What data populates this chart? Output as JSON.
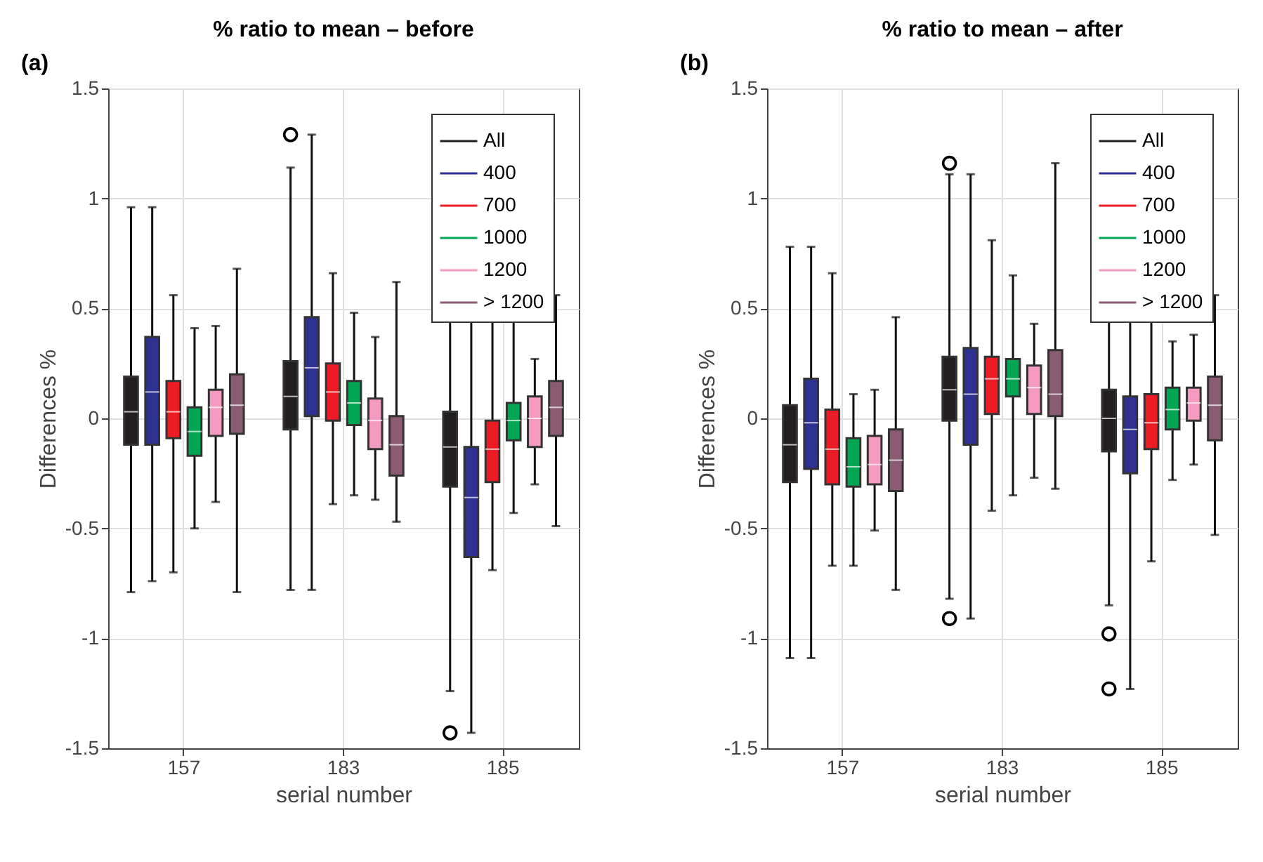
{
  "chart_data": [
    {
      "type": "box",
      "title": "% ratio to mean – before",
      "xlabel": "serial number",
      "ylabel": "Differences %",
      "annotations": [
        "(a)"
      ],
      "categories": [
        "157",
        "183",
        "185"
      ],
      "ylim": [
        -1.5,
        1.5
      ],
      "yticks": [
        -1.5,
        -1,
        -0.5,
        0,
        0.5,
        1,
        1.5
      ],
      "grid": true,
      "legend": "top right",
      "series": [
        {
          "name": "All",
          "color": "#231f20",
          "boxes": [
            {
              "low": -0.79,
              "q1": -0.12,
              "median": 0.03,
              "q3": 0.19,
              "high": 0.96
            },
            {
              "low": -0.78,
              "q1": -0.05,
              "median": 0.1,
              "q3": 0.26,
              "high": 1.14,
              "outliers": [
                1.29
              ]
            },
            {
              "low": -1.24,
              "q1": -0.31,
              "median": -0.13,
              "q3": 0.03,
              "high": 0.9,
              "outliers": [
                -1.43
              ]
            }
          ]
        },
        {
          "name": "400",
          "color": "#2e3192",
          "boxes": [
            {
              "low": -0.74,
              "q1": -0.12,
              "median": 0.12,
              "q3": 0.37,
              "high": 0.96
            },
            {
              "low": -0.78,
              "q1": 0.01,
              "median": 0.23,
              "q3": 0.46,
              "high": 1.29
            },
            {
              "low": -1.43,
              "q1": -0.63,
              "median": -0.36,
              "q3": -0.13,
              "high": 0.9
            }
          ]
        },
        {
          "name": "700",
          "color": "#ed1c24",
          "boxes": [
            {
              "low": -0.7,
              "q1": -0.09,
              "median": 0.03,
              "q3": 0.17,
              "high": 0.56
            },
            {
              "low": -0.39,
              "q1": -0.01,
              "median": 0.12,
              "q3": 0.25,
              "high": 0.66
            },
            {
              "low": -0.69,
              "q1": -0.29,
              "median": -0.14,
              "q3": -0.01,
              "high": 0.8
            }
          ]
        },
        {
          "name": "1000",
          "color": "#00a651",
          "boxes": [
            {
              "low": -0.5,
              "q1": -0.17,
              "median": -0.06,
              "q3": 0.05,
              "high": 0.41
            },
            {
              "low": -0.35,
              "q1": -0.03,
              "median": 0.07,
              "q3": 0.17,
              "high": 0.48
            },
            {
              "low": -0.43,
              "q1": -0.1,
              "median": -0.01,
              "q3": 0.07,
              "high": 0.44
            }
          ]
        },
        {
          "name": "1200",
          "color": "#f49ac1",
          "boxes": [
            {
              "low": -0.38,
              "q1": -0.08,
              "median": 0.05,
              "q3": 0.13,
              "high": 0.42
            },
            {
              "low": -0.37,
              "q1": -0.14,
              "median": -0.01,
              "q3": 0.09,
              "high": 0.37
            },
            {
              "low": -0.3,
              "q1": -0.13,
              "median": 0,
              "q3": 0.1,
              "high": 0.27
            }
          ]
        },
        {
          "name": "> 1200",
          "color": "#8b5a73",
          "boxes": [
            {
              "low": -0.79,
              "q1": -0.07,
              "median": 0.06,
              "q3": 0.2,
              "high": 0.68
            },
            {
              "low": -0.47,
              "q1": -0.26,
              "median": -0.12,
              "q3": 0.01,
              "high": 0.62
            },
            {
              "low": -0.49,
              "q1": -0.08,
              "median": 0.05,
              "q3": 0.17,
              "high": 0.56
            }
          ]
        }
      ]
    },
    {
      "type": "box",
      "title": "% ratio to mean – after",
      "xlabel": "serial number",
      "ylabel": "Differences %",
      "annotations": [
        "(b)"
      ],
      "categories": [
        "157",
        "183",
        "185"
      ],
      "ylim": [
        -1.5,
        1.5
      ],
      "yticks": [
        -1.5,
        -1,
        -0.5,
        0,
        0.5,
        1,
        1.5
      ],
      "grid": true,
      "legend": "top right",
      "series": [
        {
          "name": "All",
          "color": "#231f20",
          "boxes": [
            {
              "low": -1.09,
              "q1": -0.29,
              "median": -0.12,
              "q3": 0.06,
              "high": 0.78
            },
            {
              "low": -0.82,
              "q1": -0.01,
              "median": 0.13,
              "q3": 0.28,
              "high": 1.11,
              "outliers": [
                1.16,
                -0.91
              ]
            },
            {
              "low": -0.85,
              "q1": -0.15,
              "median": 0,
              "q3": 0.13,
              "high": 0.9,
              "outliers": [
                -0.98,
                -1.23
              ]
            }
          ]
        },
        {
          "name": "400",
          "color": "#2e3192",
          "boxes": [
            {
              "low": -1.09,
              "q1": -0.23,
              "median": -0.02,
              "q3": 0.18,
              "high": 0.78
            },
            {
              "low": -0.91,
              "q1": -0.12,
              "median": 0.11,
              "q3": 0.32,
              "high": 1.11
            },
            {
              "low": -1.23,
              "q1": -0.25,
              "median": -0.05,
              "q3": 0.1,
              "high": 0.9
            }
          ]
        },
        {
          "name": "700",
          "color": "#ed1c24",
          "boxes": [
            {
              "low": -0.67,
              "q1": -0.3,
              "median": -0.14,
              "q3": 0.04,
              "high": 0.66
            },
            {
              "low": -0.42,
              "q1": 0.02,
              "median": 0.18,
              "q3": 0.28,
              "high": 0.81
            },
            {
              "low": -0.65,
              "q1": -0.14,
              "median": -0.02,
              "q3": 0.11,
              "high": 0.56
            }
          ]
        },
        {
          "name": "1000",
          "color": "#00a651",
          "boxes": [
            {
              "low": -0.67,
              "q1": -0.31,
              "median": -0.22,
              "q3": -0.09,
              "high": 0.11
            },
            {
              "low": -0.35,
              "q1": 0.1,
              "median": 0.18,
              "q3": 0.27,
              "high": 0.65
            },
            {
              "low": -0.28,
              "q1": -0.05,
              "median": 0.04,
              "q3": 0.14,
              "high": 0.35
            }
          ]
        },
        {
          "name": "1200",
          "color": "#f49ac1",
          "boxes": [
            {
              "low": -0.51,
              "q1": -0.3,
              "median": -0.21,
              "q3": -0.08,
              "high": 0.13
            },
            {
              "low": -0.27,
              "q1": 0.02,
              "median": 0.14,
              "q3": 0.24,
              "high": 0.43
            },
            {
              "low": -0.21,
              "q1": -0.01,
              "median": 0.07,
              "q3": 0.14,
              "high": 0.38
            }
          ]
        },
        {
          "name": "> 1200",
          "color": "#8b5a73",
          "boxes": [
            {
              "low": -0.78,
              "q1": -0.33,
              "median": -0.19,
              "q3": -0.05,
              "high": 0.46
            },
            {
              "low": -0.32,
              "q1": 0.01,
              "median": 0.11,
              "q3": 0.31,
              "high": 1.16
            },
            {
              "low": -0.53,
              "q1": -0.1,
              "median": 0.06,
              "q3": 0.19,
              "high": 0.56
            }
          ]
        }
      ]
    }
  ]
}
